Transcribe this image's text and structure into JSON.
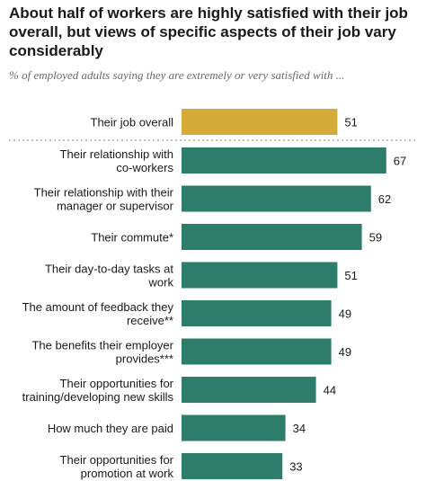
{
  "title": "About half of workers are highly satisfied with their job overall, but views of specific aspects of their job vary considerably",
  "subtitle": "% of employed adults saying they are extremely or very satisfied with ...",
  "colors": {
    "overall": "#d4aa3a",
    "aspects": "#2e7d6b",
    "divider": "#9a9a9a"
  },
  "chart_data": {
    "type": "bar",
    "orientation": "horizontal",
    "categories": [
      [
        "Their job overall"
      ],
      [
        "Their relationship with",
        "co-workers"
      ],
      [
        "Their relationship with their",
        "manager or supervisor"
      ],
      [
        "Their commute*"
      ],
      [
        "Their day-to-day tasks at",
        "work"
      ],
      [
        "The amount of feedback they",
        "receive**"
      ],
      [
        "The benefits their employer",
        "provides***"
      ],
      [
        "Their opportunities for",
        "training/developing new skills"
      ],
      [
        "How much they are paid"
      ],
      [
        "Their opportunities for",
        "promotion at work"
      ]
    ],
    "values": [
      51,
      67,
      62,
      59,
      51,
      49,
      49,
      44,
      34,
      33
    ],
    "highlight_index": 0,
    "divider_after_index": 0,
    "xlim": [
      0,
      100
    ],
    "title": "About half of workers are highly satisfied with their job overall, but views of specific aspects of their job vary considerably",
    "subtitle": "% of employed adults saying they are extremely or very satisfied with ...",
    "grid": false,
    "legend": "none"
  }
}
